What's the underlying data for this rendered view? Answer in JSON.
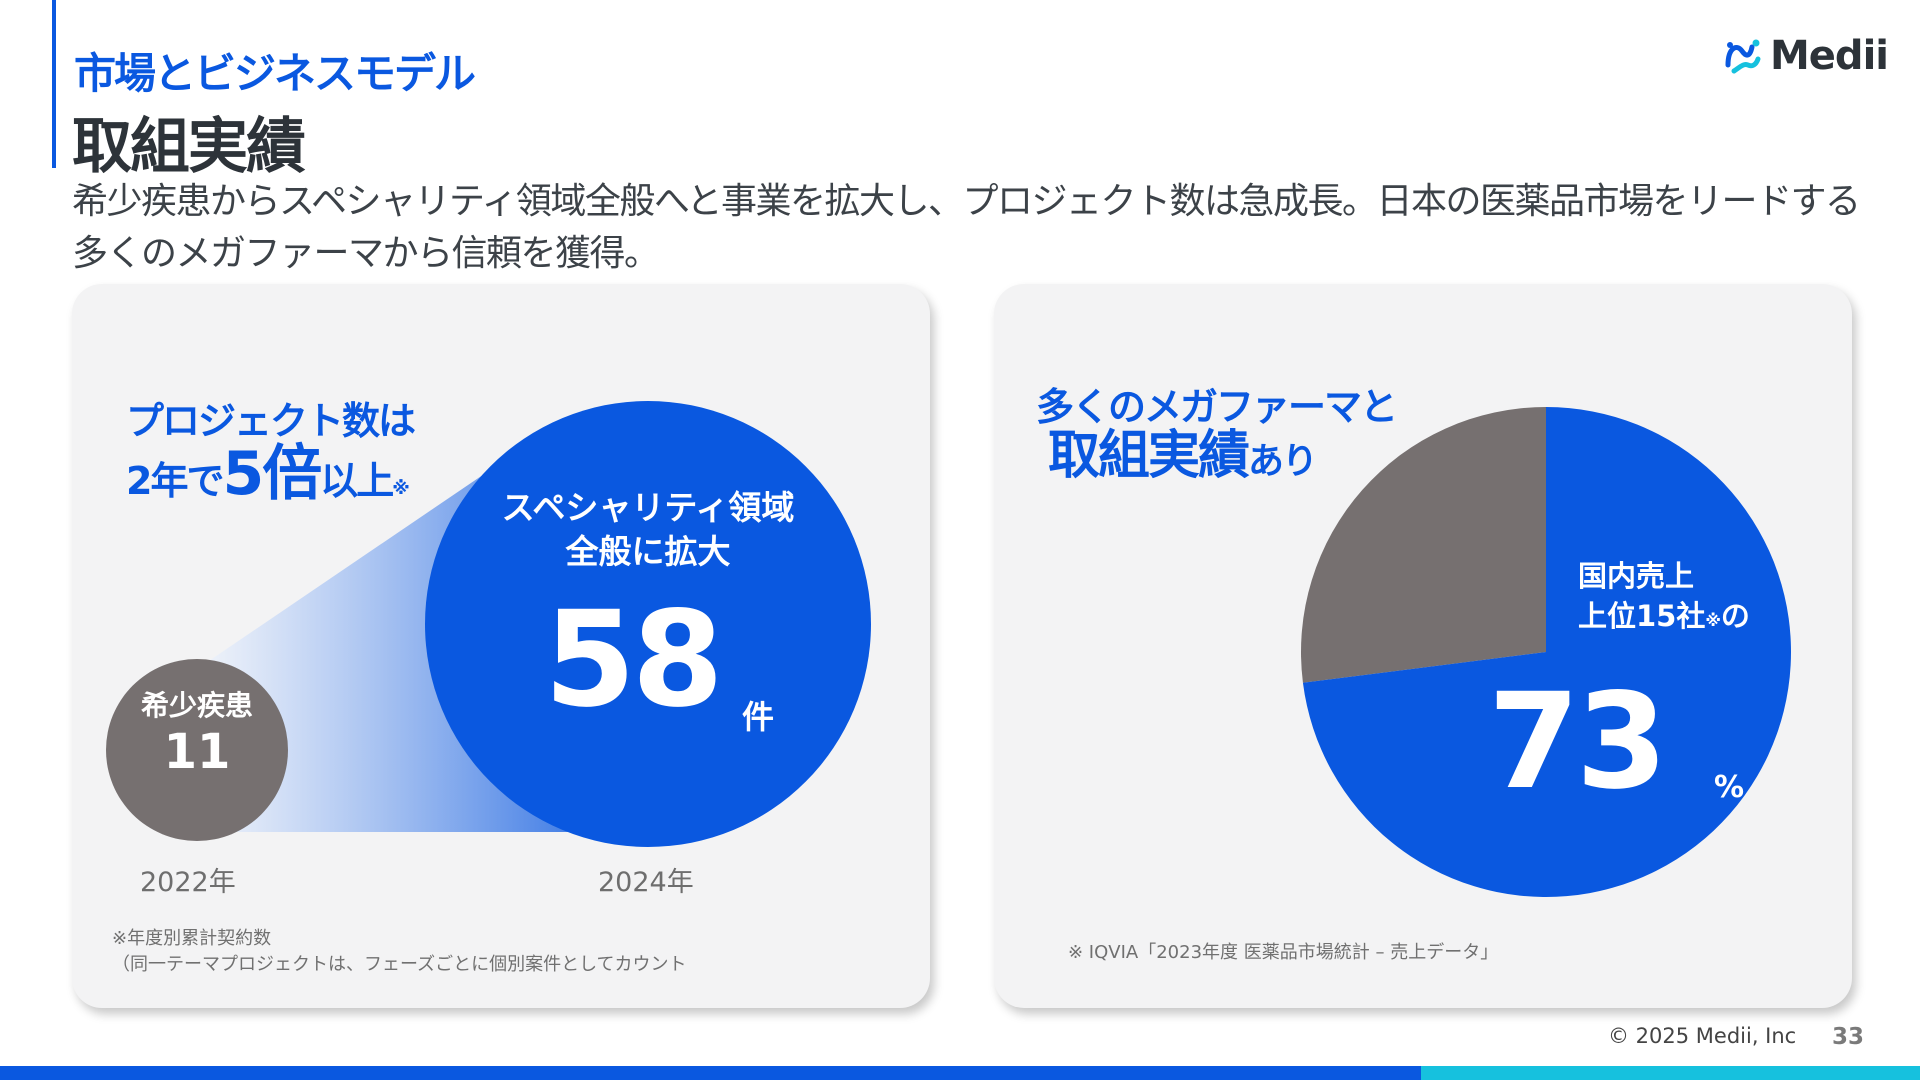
{
  "header": {
    "section": "市場とビジネスモデル",
    "title": "取組実績",
    "lead": "希少疾患からスペシャリティ領域全般へと事業を拡大し、プロジェクト数は急成長。日本の医薬品市場をリードする多くのメガファーマから信頼を獲得。"
  },
  "logo": {
    "text": "Medii",
    "icon": "medii-logo-icon"
  },
  "left_card": {
    "headline_line1": "プロジェクト数は",
    "headline_pre": "2年で",
    "headline_big": "5倍",
    "headline_post": "以上",
    "headline_mark": "※",
    "small_circle": {
      "label": "希少疾患",
      "value": "11",
      "year": "2022年",
      "color": "#767070"
    },
    "big_circle": {
      "label_line1": "スペシャリティ領域",
      "label_line2": "全般に拡大",
      "value": "58",
      "unit": "件",
      "year": "2024年",
      "color": "#0a58e0"
    },
    "note_line1": "※年度別累計契約数",
    "note_line2": "（同一テーマプロジェクトは、フェーズごとに個別案件としてカウント"
  },
  "right_card": {
    "headline_line1": "多くのメガファーマと",
    "headline_big": "取組実績",
    "headline_post": "あり",
    "pie_label_line1": "国内売上",
    "pie_label_line2_pre": "上位15社",
    "pie_label_mark": "※",
    "pie_label_line2_post": "の",
    "value": "73",
    "unit": "%",
    "note": "※ IQVIA「2023年度 医薬品市場統計 – 売上データ」"
  },
  "pie": {
    "share_percent": 73,
    "colors": {
      "share": "#0a58e0",
      "rest": "#767070"
    }
  },
  "footer": {
    "copyright": "© 2025 Medii, Inc",
    "page": "33"
  }
}
